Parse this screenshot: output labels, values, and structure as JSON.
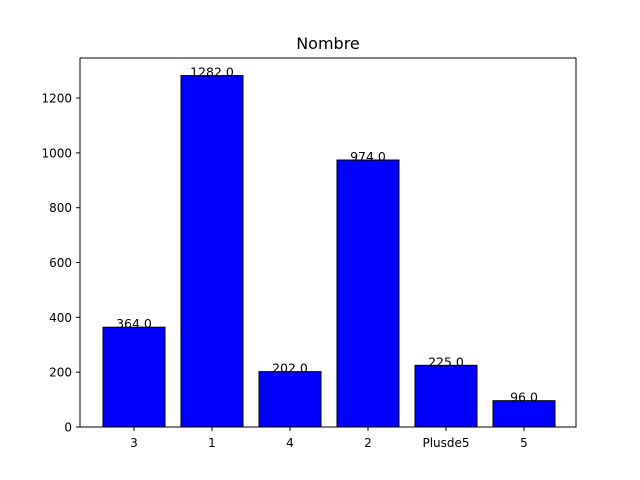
{
  "chart_data": {
    "type": "bar",
    "title": "Nombre",
    "xlabel": "",
    "ylabel": "",
    "categories": [
      "3",
      "1",
      "4",
      "2",
      "Plusde5",
      "5"
    ],
    "values": [
      364,
      1282,
      202,
      974,
      225,
      96
    ],
    "data_labels": [
      "364.0",
      "1282.0",
      "202.0",
      "974.0",
      "225.0",
      "96.0"
    ],
    "ylim": [
      0,
      1346.1
    ],
    "yticks": [
      0,
      200,
      400,
      600,
      800,
      1000,
      1200
    ],
    "bar_color": "#0000ff",
    "edge_color": "#000000",
    "grid": false,
    "legend": "none"
  }
}
